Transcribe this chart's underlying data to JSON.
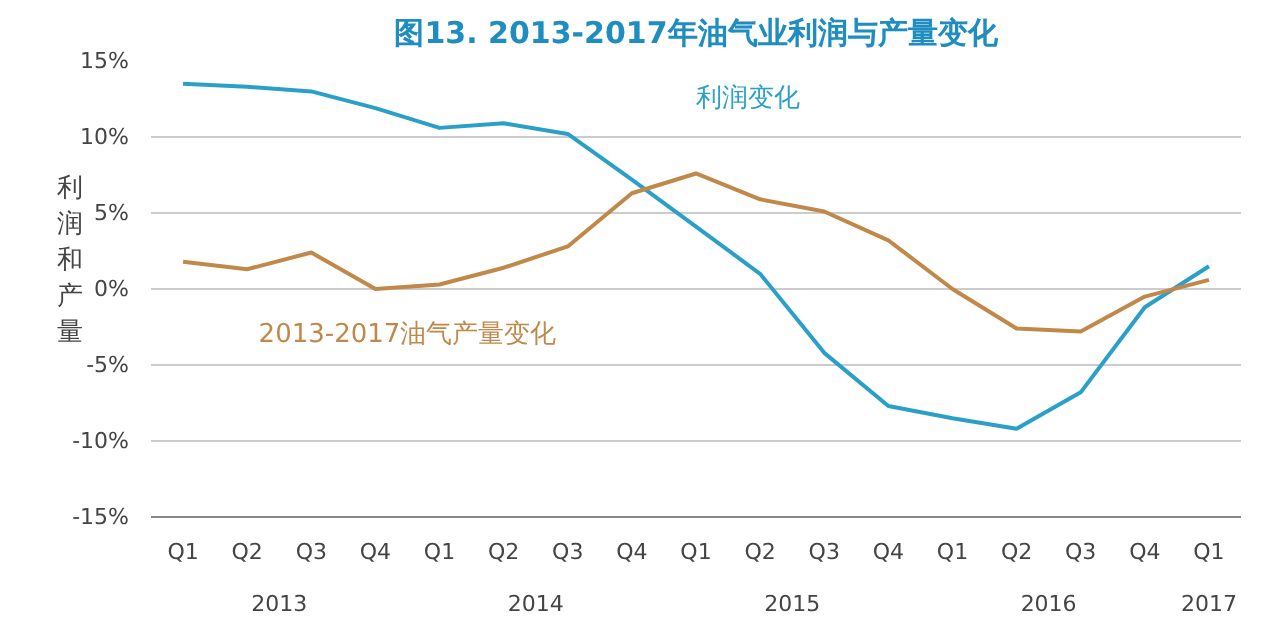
{
  "chart_data": {
    "type": "line",
    "title": "图13. 2013-2017年油气业利润与产量变化",
    "ylabel": "利润和产量",
    "categories": [
      "Q1",
      "Q2",
      "Q3",
      "Q4",
      "Q1",
      "Q2",
      "Q3",
      "Q4",
      "Q1",
      "Q2",
      "Q3",
      "Q4",
      "Q1",
      "Q2",
      "Q3",
      "Q4",
      "Q1"
    ],
    "annotations": [
      "2013",
      "2014",
      "2015",
      "2016",
      "2017"
    ],
    "series": [
      {
        "name": "利润变化",
        "color": "#2aa0c8",
        "values": [
          13.5,
          13.3,
          13.0,
          11.9,
          10.6,
          10.9,
          10.2,
          7.2,
          4.1,
          1.0,
          -4.2,
          -7.7,
          -8.5,
          -9.2,
          -6.8,
          -1.2,
          1.5
        ]
      },
      {
        "name": "2013-2017油气产量变化",
        "color": "#c0894a",
        "values": [
          1.8,
          1.3,
          2.4,
          0.0,
          0.3,
          1.4,
          2.8,
          6.3,
          7.6,
          5.9,
          5.1,
          3.2,
          0.0,
          -2.6,
          -2.8,
          -0.5,
          0.6
        ]
      }
    ],
    "ylim": [
      -15,
      15
    ],
    "yticks": [
      {
        "value": -15,
        "label": "-15%"
      },
      {
        "value": -10,
        "label": "-10%"
      },
      {
        "value": -5,
        "label": "-5%"
      },
      {
        "value": 0,
        "label": "0%"
      },
      {
        "value": 5,
        "label": "5%"
      },
      {
        "value": 10,
        "label": "10%"
      },
      {
        "value": 15,
        "label": "15%"
      }
    ],
    "grid": "y",
    "marker": "none",
    "line_style": "solid"
  }
}
